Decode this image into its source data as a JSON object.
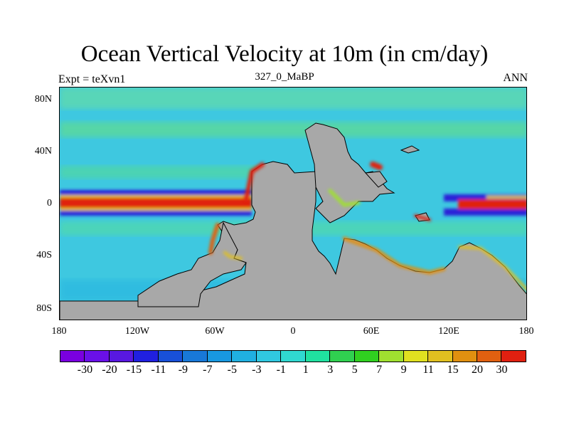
{
  "header": {
    "title": "Ocean Vertical Velocity at 10m (in cm/day)",
    "left": "Expt = teXvn1",
    "center": "327_0_MaBP",
    "right": "ANN"
  },
  "axes": {
    "lat_labels": [
      "80N",
      "40N",
      "0",
      "40S",
      "80S"
    ],
    "lon_labels": [
      "180",
      "120W",
      "60W",
      "0",
      "60E",
      "120E",
      "180"
    ]
  },
  "colorbar": {
    "labels": [
      "-30",
      "-20",
      "-15",
      "-11",
      "-9",
      "-7",
      "-5",
      "-3",
      "-1",
      "1",
      "3",
      "5",
      "7",
      "9",
      "11",
      "15",
      "20",
      "30"
    ],
    "colors": [
      "#7a00e0",
      "#6a10e8",
      "#5818e0",
      "#2020e0",
      "#1850d8",
      "#1878d8",
      "#1898e0",
      "#20b0e0",
      "#30c8e0",
      "#30d8d0",
      "#20e0a0",
      "#30d050",
      "#30d020",
      "#a0e030",
      "#e0e020",
      "#e0c020",
      "#e09010",
      "#e06010",
      "#e02010"
    ]
  },
  "palette": {
    "land": "#a8a8a8",
    "ocean_base": "#3ec8e0",
    "strong_positive": "#e02010",
    "strong_negative": "#2020e0"
  }
}
